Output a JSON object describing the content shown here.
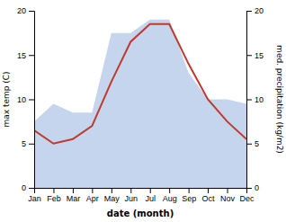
{
  "chart_data": {
    "type": "line",
    "categories": [
      "Jan",
      "Feb",
      "Mar",
      "Apr",
      "May",
      "Jun",
      "Jul",
      "Aug",
      "Sep",
      "Oct",
      "Nov",
      "Dec"
    ],
    "series": [
      {
        "type": "area",
        "axis": "y2",
        "color": "#c5d5ee",
        "values": [
          7.5,
          9.5,
          8.5,
          8.5,
          17.5,
          17.5,
          19.0,
          19.0,
          13.0,
          10.0,
          10.0,
          9.5
        ]
      },
      {
        "type": "line",
        "color": "#c0392b",
        "values": [
          6.5,
          5.0,
          5.5,
          7.0,
          12.0,
          16.5,
          18.5,
          18.5,
          14.0,
          10.0,
          7.5,
          5.5
        ]
      }
    ],
    "xlabel": "date (month)",
    "ylabel": "max temp (C)",
    "y2label": "med. precipitation (kg/m2)",
    "ylim": [
      0,
      20
    ],
    "yticks": [
      0,
      5,
      10,
      15,
      20
    ],
    "y2lim": [
      0,
      20
    ],
    "y2ticks": [
      0,
      5,
      10,
      15,
      20
    ],
    "grid": false
  }
}
